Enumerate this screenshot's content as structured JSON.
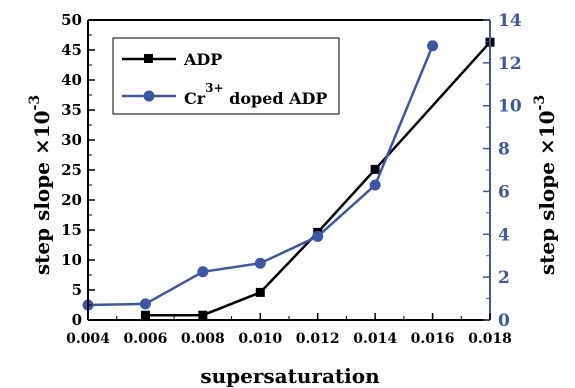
{
  "chart_data": {
    "type": "line",
    "xlabel": "supersaturation",
    "x_ticks": [
      "0.004",
      "0.006",
      "0.008",
      "0.010",
      "0.012",
      "0.014",
      "0.016",
      "0.018"
    ],
    "xlim": [
      0.004,
      0.018
    ],
    "y_left": {
      "label_base": "step slope ×10",
      "label_exp": "-3",
      "ylim": [
        0,
        50
      ],
      "ticks": [
        "0",
        "5",
        "10",
        "15",
        "20",
        "25",
        "30",
        "35",
        "40",
        "45",
        "50"
      ]
    },
    "y_right": {
      "label_base": "step slope ×10",
      "label_exp": "-3",
      "ylim": [
        0,
        14
      ],
      "ticks": [
        "0",
        "2",
        "4",
        "6",
        "8",
        "10",
        "12",
        "14"
      ]
    },
    "series": [
      {
        "name": "ADP",
        "axis": "left",
        "color": "#000000",
        "marker": "square",
        "x": [
          0.006,
          0.008,
          0.01,
          0.012,
          0.014,
          0.018
        ],
        "y": [
          0.8,
          0.8,
          4.6,
          14.6,
          25.1,
          46.3
        ]
      },
      {
        "name_main": "Cr",
        "name_sup": "3+",
        "name_rest": " doped ADP",
        "axis": "right",
        "color": "#3b57a6",
        "marker": "circle",
        "x": [
          0.004,
          0.006,
          0.008,
          0.01,
          0.012,
          0.014,
          0.016
        ],
        "y": [
          0.7,
          0.75,
          2.25,
          2.65,
          3.9,
          6.3,
          12.8
        ]
      }
    ],
    "legend_position": "top-left",
    "grid": false
  }
}
